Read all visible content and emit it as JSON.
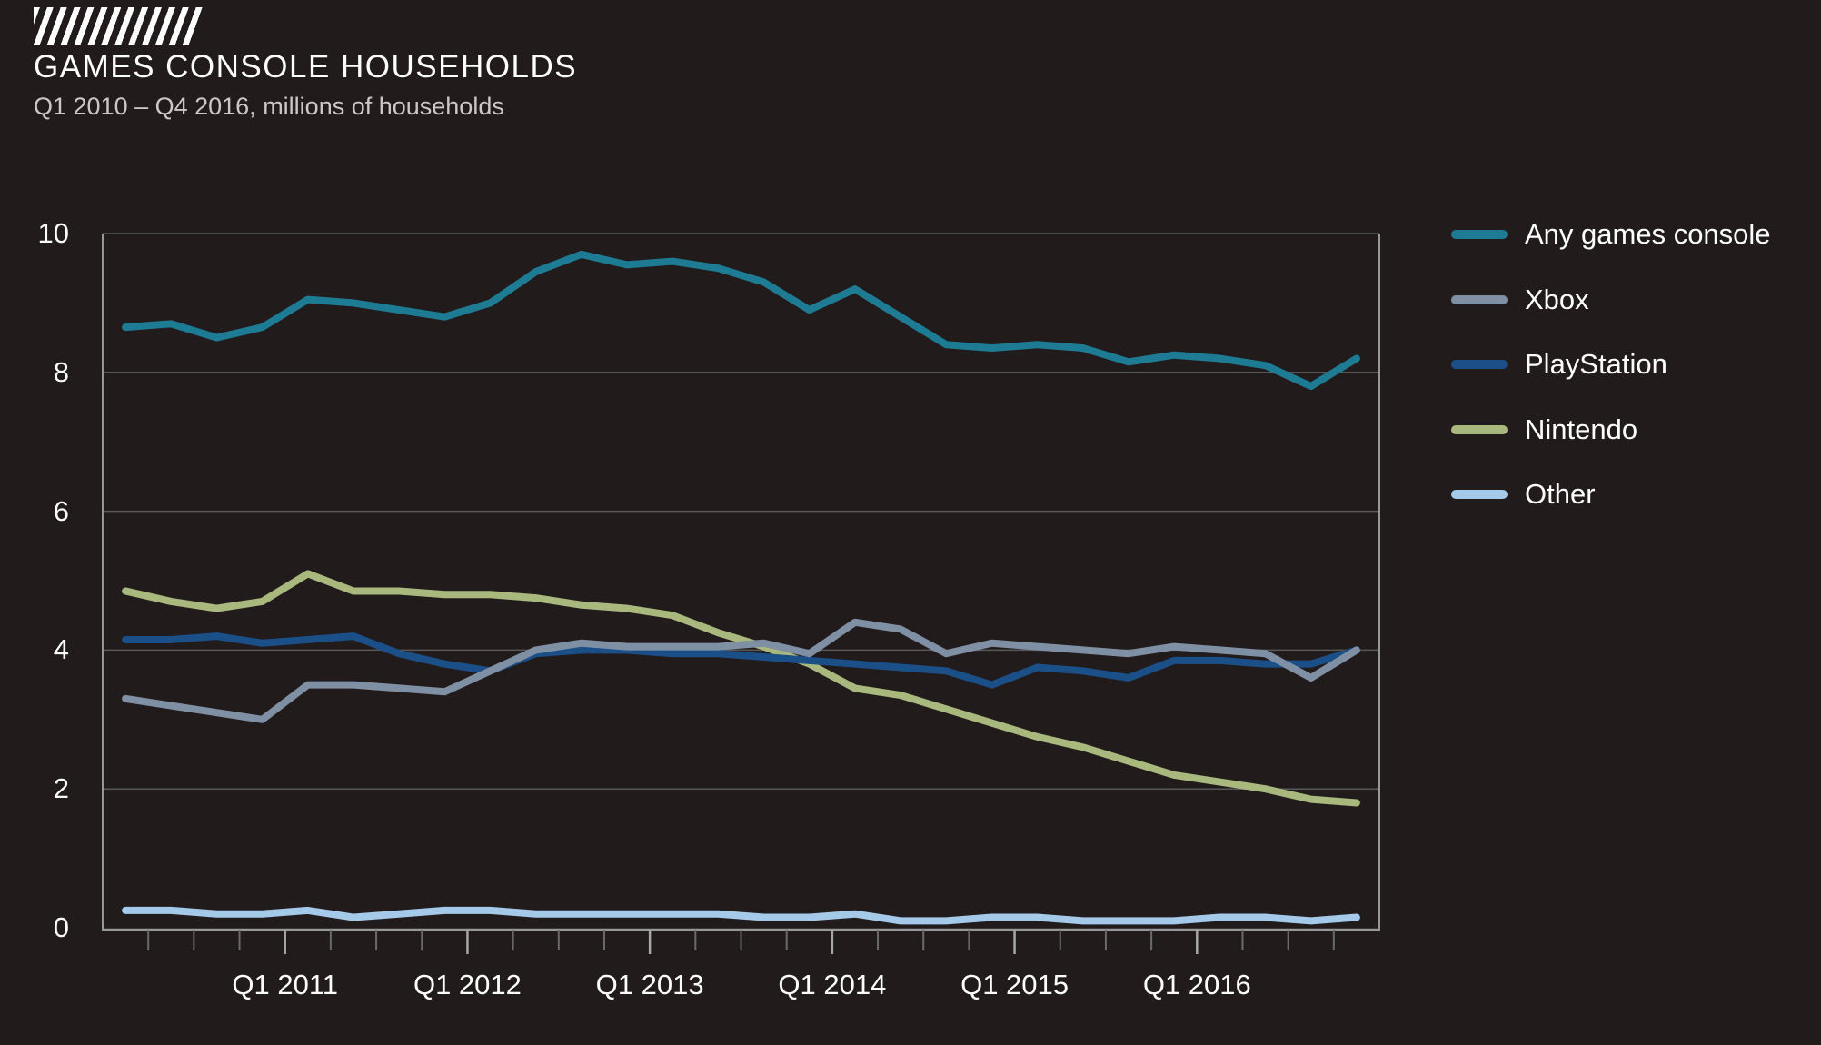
{
  "header": {
    "title": "GAMES CONSOLE HOUSEHOLDS",
    "subtitle": "Q1 2010 – Q4 2016, millions of households"
  },
  "colors": {
    "background": "#211b1c",
    "gridline": "#585858",
    "axis_line": "#989898",
    "minor_tick": "#6a6a6a",
    "major_tick": "#a8a8a8",
    "text": "#ffffff",
    "subtitle_text": "#cdc8c6"
  },
  "chart_data": {
    "type": "line",
    "title": "GAMES CONSOLE HOUSEHOLDS",
    "subtitle": "Q1 2010 – Q4 2016, millions of households",
    "ylabel": "millions of households",
    "ylim": [
      0,
      10
    ],
    "yticks": [
      0,
      2,
      4,
      6,
      8,
      10
    ],
    "grid": true,
    "legend_position": "right",
    "categories": [
      "Q1 2010",
      "Q2 2010",
      "Q3 2010",
      "Q4 2010",
      "Q1 2011",
      "Q2 2011",
      "Q3 2011",
      "Q4 2011",
      "Q1 2012",
      "Q2 2012",
      "Q3 2012",
      "Q4 2012",
      "Q1 2013",
      "Q2 2013",
      "Q3 2013",
      "Q4 2013",
      "Q1 2014",
      "Q2 2014",
      "Q3 2014",
      "Q4 2014",
      "Q1 2015",
      "Q2 2015",
      "Q3 2015",
      "Q4 2015",
      "Q1 2016",
      "Q2 2016",
      "Q3 2016",
      "Q4 2016"
    ],
    "x_axis": {
      "tick_labels": [
        {
          "label": "Q1 2011",
          "boundary_index": 4
        },
        {
          "label": "Q1 2012",
          "boundary_index": 8
        },
        {
          "label": "Q1 2013",
          "boundary_index": 12
        },
        {
          "label": "Q1 2014",
          "boundary_index": 16
        },
        {
          "label": "Q1 2015",
          "boundary_index": 20
        },
        {
          "label": "Q1 2016",
          "boundary_index": 24
        }
      ],
      "minor_ticks_every_quarter": true
    },
    "series": [
      {
        "name": "Any games console",
        "color": "#1d7c94",
        "values": [
          8.65,
          8.7,
          8.5,
          8.65,
          9.05,
          9.0,
          8.9,
          8.8,
          9.0,
          9.45,
          9.7,
          9.55,
          9.6,
          9.5,
          9.3,
          8.9,
          9.2,
          8.8,
          8.4,
          8.35,
          8.4,
          8.35,
          8.15,
          8.25,
          8.2,
          8.1,
          7.8,
          8.2
        ]
      },
      {
        "name": "Xbox",
        "color": "#8090a4",
        "values": [
          3.3,
          3.2,
          3.1,
          3.0,
          3.5,
          3.5,
          3.45,
          3.4,
          3.7,
          4.0,
          4.1,
          4.05,
          4.05,
          4.05,
          4.1,
          3.95,
          4.4,
          4.3,
          3.95,
          4.1,
          4.05,
          4.0,
          3.95,
          4.05,
          4.0,
          3.95,
          3.6,
          4.0
        ]
      },
      {
        "name": "PlayStation",
        "color": "#1b4f88",
        "values": [
          4.15,
          4.15,
          4.2,
          4.1,
          4.15,
          4.2,
          3.95,
          3.8,
          3.7,
          3.95,
          4.0,
          4.0,
          3.95,
          3.95,
          3.9,
          3.85,
          3.8,
          3.75,
          3.7,
          3.5,
          3.75,
          3.7,
          3.6,
          3.85,
          3.85,
          3.8,
          3.8,
          4.0
        ]
      },
      {
        "name": "Nintendo",
        "color": "#a9b97e",
        "values": [
          4.85,
          4.7,
          4.6,
          4.7,
          5.1,
          4.85,
          4.85,
          4.8,
          4.8,
          4.75,
          4.65,
          4.6,
          4.5,
          4.25,
          4.05,
          3.8,
          3.45,
          3.35,
          3.15,
          2.95,
          2.75,
          2.6,
          2.4,
          2.2,
          2.1,
          2.0,
          1.85,
          1.8
        ]
      },
      {
        "name": "Other",
        "color": "#a5c9e8",
        "values": [
          0.25,
          0.25,
          0.2,
          0.2,
          0.25,
          0.15,
          0.2,
          0.25,
          0.25,
          0.2,
          0.2,
          0.2,
          0.2,
          0.2,
          0.15,
          0.15,
          0.2,
          0.1,
          0.1,
          0.15,
          0.15,
          0.1,
          0.1,
          0.1,
          0.15,
          0.15,
          0.1,
          0.15
        ]
      }
    ]
  }
}
